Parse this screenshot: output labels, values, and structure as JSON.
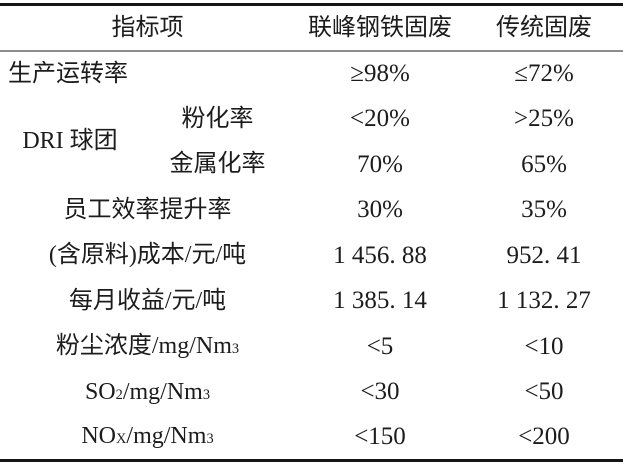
{
  "meta": {
    "background_color": "#ffffff",
    "text_color": "#1c1c1c",
    "thick_rule_color": "#161616",
    "header_rule_color": "#8d8d8d"
  },
  "table": {
    "header": {
      "indicator": "指标项",
      "lianfeng": "联峰钢铁固废",
      "traditional": "传统固废"
    },
    "rows": [
      {
        "label": "生产运转率",
        "a": "≥98%",
        "b": "≤72%"
      },
      {
        "group_label": "DRI 球团",
        "label": "粉化率",
        "a": "<20%",
        "b": ">25%"
      },
      {
        "label": "金属化率",
        "a": "70%",
        "b": "65%"
      },
      {
        "label": "员工效率提升率",
        "a": "30%",
        "b": "35%"
      },
      {
        "label": "(含原料)成本/元/吨",
        "a": "1 456. 88",
        "b": "952. 41"
      },
      {
        "label": "每月收益/元/吨",
        "a": "1 385. 14",
        "b": "1 132. 27"
      },
      {
        "label_parts": [
          {
            "text": "粉尘浓度/mg/Nm"
          },
          {
            "sup": "3"
          }
        ],
        "a": "<5",
        "b": "<10"
      },
      {
        "label_parts": [
          {
            "text": "SO"
          },
          {
            "sub": "2"
          },
          {
            "text": "/mg/Nm"
          },
          {
            "sup": "3"
          }
        ],
        "a": "<30",
        "b": "<50"
      },
      {
        "label_parts": [
          {
            "text": "NO"
          },
          {
            "sub": "X"
          },
          {
            "text": "/mg/Nm"
          },
          {
            "sup": "3"
          }
        ],
        "a": "<150",
        "b": "<200"
      }
    ]
  }
}
